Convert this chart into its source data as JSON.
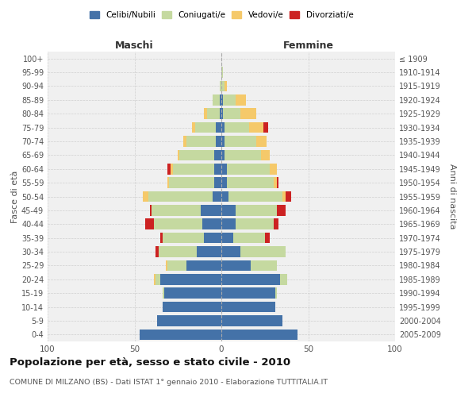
{
  "age_groups": [
    "0-4",
    "5-9",
    "10-14",
    "15-19",
    "20-24",
    "25-29",
    "30-34",
    "35-39",
    "40-44",
    "45-49",
    "50-54",
    "55-59",
    "60-64",
    "65-69",
    "70-74",
    "75-79",
    "80-84",
    "85-89",
    "90-94",
    "95-99",
    "100+"
  ],
  "birth_years": [
    "2005-2009",
    "2000-2004",
    "1995-1999",
    "1990-1994",
    "1985-1989",
    "1980-1984",
    "1975-1979",
    "1970-1974",
    "1965-1969",
    "1960-1964",
    "1955-1959",
    "1950-1954",
    "1945-1949",
    "1940-1944",
    "1935-1939",
    "1930-1934",
    "1925-1929",
    "1920-1924",
    "1915-1919",
    "1910-1914",
    "≤ 1909"
  ],
  "male": {
    "celibi": [
      47,
      37,
      34,
      33,
      35,
      20,
      14,
      10,
      11,
      12,
      5,
      4,
      4,
      4,
      3,
      3,
      1,
      1,
      0,
      0,
      0
    ],
    "coniugati": [
      0,
      0,
      0,
      1,
      3,
      11,
      22,
      24,
      28,
      28,
      37,
      26,
      24,
      20,
      17,
      12,
      7,
      4,
      1,
      0,
      0
    ],
    "vedovi": [
      0,
      0,
      0,
      0,
      1,
      1,
      0,
      0,
      0,
      0,
      3,
      1,
      1,
      1,
      2,
      2,
      2,
      0,
      0,
      0,
      0
    ],
    "divorziati": [
      0,
      0,
      0,
      0,
      0,
      0,
      2,
      1,
      5,
      1,
      0,
      0,
      2,
      0,
      0,
      0,
      0,
      0,
      0,
      0,
      0
    ]
  },
  "female": {
    "nubili": [
      44,
      35,
      31,
      31,
      34,
      17,
      11,
      7,
      8,
      8,
      4,
      3,
      3,
      2,
      2,
      2,
      1,
      1,
      0,
      0,
      0
    ],
    "coniugate": [
      0,
      0,
      0,
      1,
      4,
      15,
      26,
      18,
      22,
      24,
      31,
      27,
      25,
      21,
      18,
      14,
      10,
      7,
      2,
      1,
      0
    ],
    "vedove": [
      0,
      0,
      0,
      0,
      0,
      0,
      0,
      0,
      0,
      0,
      2,
      2,
      4,
      5,
      6,
      8,
      9,
      6,
      1,
      0,
      0
    ],
    "divorziate": [
      0,
      0,
      0,
      0,
      0,
      0,
      0,
      3,
      3,
      5,
      3,
      1,
      0,
      0,
      0,
      3,
      0,
      0,
      0,
      0,
      0
    ]
  },
  "colors": {
    "celibi": "#4472a8",
    "coniugati": "#c5d9a0",
    "vedovi": "#f5c96a",
    "divorziati": "#cc2222"
  },
  "title": "Popolazione per età, sesso e stato civile - 2010",
  "subtitle": "COMUNE DI MILZANO (BS) - Dati ISTAT 1° gennaio 2010 - Elaborazione TUTTITALIA.IT",
  "xlabel_left": "Maschi",
  "xlabel_right": "Femmine",
  "ylabel_left": "Fasce di età",
  "ylabel_right": "Anni di nascita",
  "xlim": 100,
  "bg_color": "#ffffff",
  "plot_bg_color": "#f0f0f0",
  "grid_color": "#cccccc"
}
